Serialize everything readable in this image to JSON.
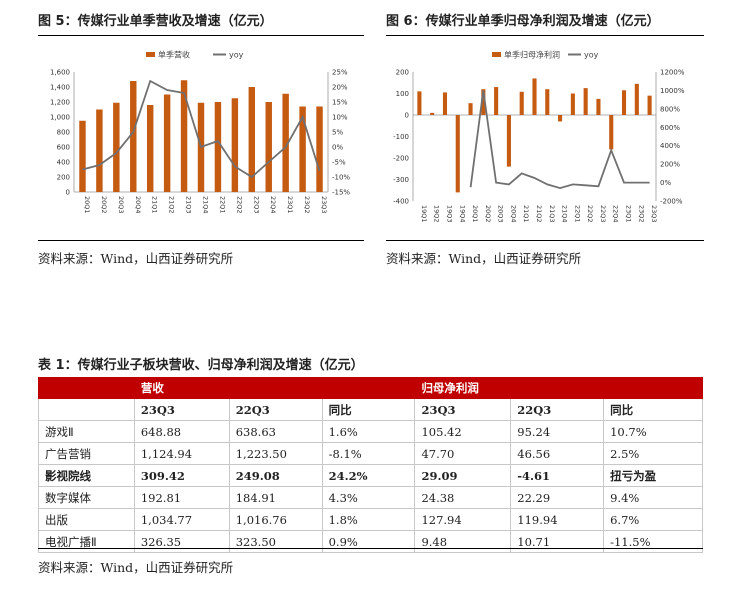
{
  "fig5": {
    "title": "图 5：传媒行业单季营收及增速（亿元）",
    "source": "资料来源：Wind，山西证券研究所"
  },
  "fig6": {
    "title": "图 6：传媒行业单季归母净利润及增速（亿元）",
    "source": "资料来源：Wind，山西证券研究所"
  },
  "table1": {
    "title": "表 1：传媒行业子板块营收、归母净利润及增速（亿元）",
    "group_revenue": "营收",
    "group_profit": "归母净利润",
    "sub_headers": [
      "23Q3",
      "22Q3",
      "同比",
      "23Q3",
      "22Q3",
      "同比"
    ],
    "rows": [
      {
        "name": "游戏Ⅱ",
        "cells": [
          "648.88",
          "638.63",
          "1.6%",
          "105.42",
          "95.24",
          "10.7%"
        ]
      },
      {
        "name": "广告营销",
        "cells": [
          "1,124.94",
          "1,223.50",
          "-8.1%",
          "47.70",
          "46.56",
          "2.5%"
        ]
      },
      {
        "name": "影视院线",
        "cells": [
          "309.42",
          "249.08",
          "24.2%",
          "29.09",
          "-4.61",
          "扭亏为盈"
        ]
      },
      {
        "name": "数字媒体",
        "cells": [
          "192.81",
          "184.91",
          "4.3%",
          "24.38",
          "22.29",
          "9.4%"
        ]
      },
      {
        "name": "出版",
        "cells": [
          "1,034.77",
          "1,016.76",
          "1.8%",
          "127.94",
          "119.94",
          "6.7%"
        ]
      },
      {
        "name": "电视广播Ⅱ",
        "cells": [
          "326.35",
          "323.50",
          "0.9%",
          "9.48",
          "10.71",
          "-11.5%"
        ]
      }
    ],
    "source": "资料来源：Wind，山西证券研究所"
  },
  "chart_data": [
    {
      "type": "bar",
      "title": "传媒行业单季营收及增速（亿元）",
      "categories": [
        "20Q1",
        "20Q2",
        "20Q3",
        "20Q4",
        "21Q1",
        "21Q2",
        "21Q3",
        "21Q4",
        "22Q1",
        "22Q2",
        "22Q3",
        "22Q4",
        "23Q1",
        "23Q2",
        "23Q3"
      ],
      "series": [
        {
          "name": "单季营收",
          "kind": "bar",
          "axis": "left",
          "color": "#c55a11",
          "values": [
            950,
            1100,
            1190,
            1480,
            1160,
            1300,
            1490,
            1190,
            1200,
            1250,
            1400,
            1200,
            1310,
            1140,
            1140
          ]
        },
        {
          "name": "yoy",
          "kind": "line",
          "axis": "right",
          "color": "#707070",
          "values": [
            -7.5,
            -6,
            -2,
            5,
            22,
            19,
            18,
            0,
            2,
            -6.5,
            -10,
            -5,
            0,
            10,
            -8
          ]
        }
      ],
      "ylim_left": [
        0,
        1600
      ],
      "yticks_left": [
        "0",
        "200",
        "400",
        "600",
        "800",
        "1,000",
        "1,200",
        "1,400",
        "1,600"
      ],
      "ylim_right": [
        -15,
        25
      ],
      "yticks_right": [
        "-15%",
        "-10%",
        "-5%",
        "0%",
        "5%",
        "10%",
        "15%",
        "20%",
        "25%"
      ],
      "legend": "top-center"
    },
    {
      "type": "bar",
      "title": "传媒行业单季归母净利润及增速（亿元）",
      "categories": [
        "19Q1",
        "19Q2",
        "19Q3",
        "19Q4",
        "20Q1",
        "20Q2",
        "20Q3",
        "20Q4",
        "21Q1",
        "21Q2",
        "21Q3",
        "21Q4",
        "22Q1",
        "22Q2",
        "22Q3",
        "22Q4",
        "23Q1",
        "23Q2",
        "23Q3"
      ],
      "series": [
        {
          "name": "单季归母净利润",
          "kind": "bar",
          "axis": "left",
          "color": "#c55a11",
          "values": [
            110,
            10,
            105,
            -360,
            55,
            120,
            130,
            -240,
            108,
            170,
            120,
            -30,
            100,
            125,
            75,
            -160,
            115,
            145,
            90
          ]
        },
        {
          "name": "yoy",
          "kind": "line",
          "axis": "right",
          "color": "#707070",
          "values": [
            null,
            null,
            null,
            null,
            -50,
            1000,
            0,
            -20,
            100,
            50,
            -20,
            -60,
            -20,
            -30,
            -40,
            350,
            0,
            0,
            0
          ]
        }
      ],
      "ylim_left": [
        -400,
        200
      ],
      "yticks_left": [
        "-400",
        "-300",
        "-200",
        "-100",
        "0",
        "100",
        "200"
      ],
      "ylim_right": [
        -200,
        1200
      ],
      "yticks_right": [
        "-200%",
        "0%",
        "200%",
        "400%",
        "600%",
        "800%",
        "1000%",
        "1200%"
      ],
      "legend": "top-center"
    }
  ]
}
